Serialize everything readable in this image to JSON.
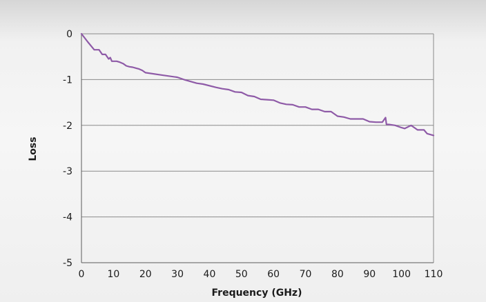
{
  "chart_data": {
    "type": "line",
    "title": "",
    "xlabel": "Frequency (GHz)",
    "ylabel": "Loss",
    "xlim": [
      0,
      110
    ],
    "ylim": [
      -5,
      0
    ],
    "xticks": [
      0,
      10,
      20,
      30,
      40,
      50,
      60,
      70,
      80,
      90,
      100,
      110
    ],
    "yticks": [
      0,
      -1,
      -2,
      -3,
      -4,
      -5
    ],
    "grid": "horizontal",
    "legend": "none",
    "series": [
      {
        "color": "#8e5aa7",
        "x": [
          0,
          2,
          4,
          5.5,
          6.5,
          7.5,
          8.5,
          9,
          9.5,
          10,
          11,
          12,
          13,
          14,
          15,
          16,
          17,
          18,
          19,
          20,
          25,
          30,
          32,
          36,
          38,
          42,
          44,
          46,
          48,
          50,
          52,
          54,
          56,
          58,
          60,
          62,
          64,
          66,
          68,
          70,
          72,
          74,
          76,
          78,
          80,
          82,
          84,
          86,
          88,
          90,
          92,
          94,
          95,
          95.3,
          96,
          98,
          100,
          101,
          103,
          104,
          105,
          107,
          108,
          110
        ],
        "y": [
          0,
          -0.18,
          -0.35,
          -0.35,
          -0.45,
          -0.45,
          -0.55,
          -0.52,
          -0.6,
          -0.6,
          -0.6,
          -0.62,
          -0.65,
          -0.7,
          -0.72,
          -0.73,
          -0.75,
          -0.77,
          -0.8,
          -0.85,
          -0.9,
          -0.95,
          -1.0,
          -1.08,
          -1.1,
          -1.17,
          -1.2,
          -1.22,
          -1.27,
          -1.28,
          -1.35,
          -1.37,
          -1.43,
          -1.44,
          -1.45,
          -1.51,
          -1.54,
          -1.55,
          -1.6,
          -1.6,
          -1.65,
          -1.65,
          -1.7,
          -1.7,
          -1.8,
          -1.82,
          -1.86,
          -1.86,
          -1.86,
          -1.92,
          -1.93,
          -1.93,
          -1.83,
          -1.98,
          -1.98,
          -2.0,
          -2.05,
          -2.07,
          -2.0,
          -2.05,
          -2.1,
          -2.1,
          -2.18,
          -2.22
        ]
      }
    ]
  }
}
